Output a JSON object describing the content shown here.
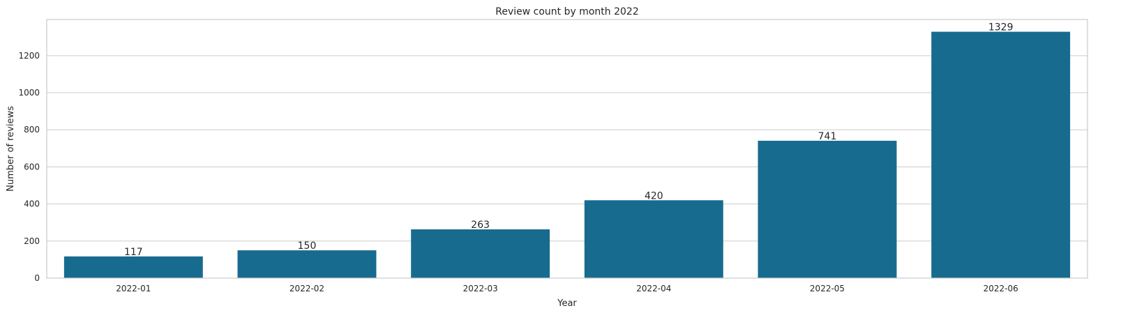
{
  "chart_data": {
    "type": "bar",
    "title": "Review count by month 2022",
    "xlabel": "Year",
    "ylabel": "Number of reviews",
    "categories": [
      "2022-01",
      "2022-02",
      "2022-03",
      "2022-04",
      "2022-05",
      "2022-06"
    ],
    "values": [
      117,
      150,
      263,
      420,
      741,
      1329
    ],
    "data_labels": [
      "117",
      "150",
      "263",
      "420",
      "741",
      "1329"
    ],
    "ylim": [
      0,
      1395
    ],
    "yticks": [
      0,
      200,
      400,
      600,
      800,
      1000,
      1200
    ],
    "ytick_labels": [
      "0",
      "200",
      "400",
      "600",
      "800",
      "1000",
      "1200"
    ],
    "grid": true,
    "legend": "none",
    "colors": {
      "bar": "#176b8f",
      "grid": "#cccccc",
      "text": "#262626"
    }
  }
}
